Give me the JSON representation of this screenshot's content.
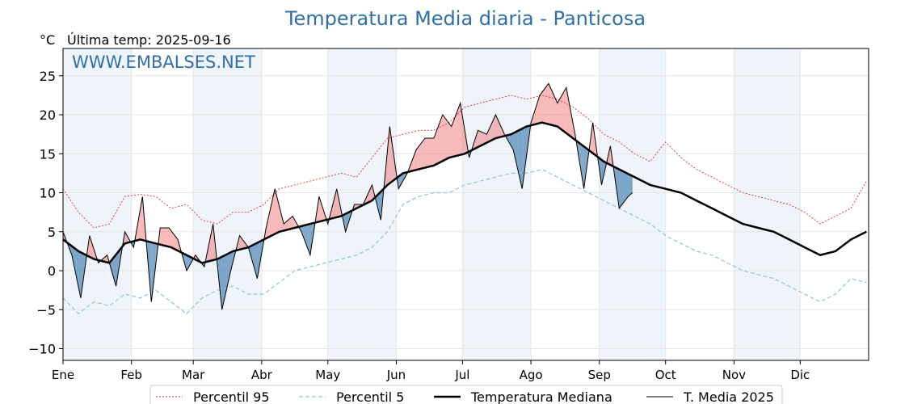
{
  "header": {
    "title": "Temperatura Media diaria - Panticosa",
    "unit": "°C",
    "last_temp": "Última temp: 2025-09-16",
    "watermark": "WWW.EMBALSES.NET"
  },
  "colors": {
    "title": "#2f6fa6",
    "p95": "#e03030",
    "p5": "#8fc4dc",
    "median": "#000000",
    "current": "#000000",
    "above_fill": "#f08080",
    "below_fill": "#2d6fa8",
    "month_band": "#eef4fa"
  },
  "chart_data": {
    "type": "line",
    "title": "Temperatura Media diaria - Panticosa",
    "ylabel": "°C",
    "ylim": [
      -11.5,
      28.5
    ],
    "xlim": [
      1,
      366
    ],
    "grid": true,
    "legend_position": "bottom",
    "yticks": [
      -10,
      -5,
      0,
      5,
      10,
      15,
      20,
      25
    ],
    "months": [
      {
        "label": "Ene",
        "day": 1
      },
      {
        "label": "Feb",
        "day": 32
      },
      {
        "label": "Mar",
        "day": 60
      },
      {
        "label": "Abr",
        "day": 91
      },
      {
        "label": "May",
        "day": 121
      },
      {
        "label": "Jun",
        "day": 152
      },
      {
        "label": "Jul",
        "day": 182
      },
      {
        "label": "Ago",
        "day": 213
      },
      {
        "label": "Sep",
        "day": 244
      },
      {
        "label": "Oct",
        "day": 274
      },
      {
        "label": "Nov",
        "day": 305
      },
      {
        "label": "Dic",
        "day": 335
      }
    ],
    "series": [
      {
        "name": "Percentil 95",
        "style": "dotted",
        "x": [
          1,
          8,
          15,
          22,
          29,
          36,
          43,
          50,
          57,
          64,
          71,
          78,
          85,
          92,
          99,
          106,
          113,
          120,
          127,
          134,
          141,
          148,
          155,
          162,
          169,
          176,
          183,
          190,
          197,
          204,
          211,
          218,
          225,
          232,
          239,
          246,
          253,
          260,
          267,
          274,
          281,
          288,
          295,
          302,
          309,
          316,
          323,
          330,
          337,
          344,
          351,
          358,
          365
        ],
        "values": [
          10.5,
          7.5,
          5.5,
          6,
          9.5,
          9.8,
          9.5,
          8,
          8.5,
          6.5,
          6,
          7.5,
          7.5,
          8.5,
          10.5,
          11,
          11.5,
          12,
          12.5,
          12,
          14.5,
          17,
          17.5,
          18,
          18,
          19,
          21,
          21.5,
          22,
          22.5,
          22,
          22.5,
          22,
          21,
          19.5,
          17.5,
          16.5,
          15,
          14,
          16.5,
          14.5,
          13,
          12,
          11,
          10,
          9.5,
          9,
          8.5,
          7.5,
          6,
          7,
          8,
          11.5
        ]
      },
      {
        "name": "Percentil 5",
        "style": "dashed",
        "x": [
          1,
          8,
          15,
          22,
          29,
          36,
          43,
          50,
          57,
          64,
          71,
          78,
          85,
          92,
          99,
          106,
          113,
          120,
          127,
          134,
          141,
          148,
          155,
          162,
          169,
          176,
          183,
          190,
          197,
          204,
          211,
          218,
          225,
          232,
          239,
          246,
          253,
          260,
          267,
          274,
          281,
          288,
          295,
          302,
          309,
          316,
          323,
          330,
          337,
          344,
          351,
          358,
          365
        ],
        "values": [
          -3.5,
          -5.5,
          -4,
          -4.5,
          -3,
          -3.5,
          -2.5,
          -4,
          -5.5,
          -3.5,
          -2.5,
          -2,
          -3,
          -3,
          -1.5,
          0,
          0.5,
          1,
          1.5,
          2,
          3,
          5,
          8.5,
          9.5,
          10,
          10,
          11,
          11.5,
          12,
          12.5,
          12.5,
          13,
          12,
          11,
          10,
          9,
          8,
          7,
          6,
          4.5,
          3.5,
          2.5,
          2,
          1,
          0,
          -0.5,
          -1,
          -2,
          -3,
          -4,
          -3,
          -1,
          -1.5
        ]
      },
      {
        "name": "Temperatura Mediana",
        "style": "solid-thick",
        "x": [
          1,
          8,
          15,
          22,
          29,
          36,
          43,
          50,
          57,
          64,
          71,
          78,
          85,
          92,
          99,
          106,
          113,
          120,
          127,
          134,
          141,
          148,
          155,
          162,
          169,
          176,
          183,
          190,
          197,
          204,
          211,
          218,
          225,
          232,
          239,
          246,
          253,
          260,
          267,
          274,
          281,
          288,
          295,
          302,
          309,
          316,
          323,
          330,
          337,
          344,
          351,
          358,
          365
        ],
        "values": [
          4,
          2.5,
          1.5,
          1,
          3.5,
          4,
          3.5,
          3,
          2,
          1,
          1.5,
          2.5,
          3,
          4,
          5,
          5.5,
          6,
          6.5,
          7,
          8,
          9,
          11,
          12.5,
          13,
          13.5,
          14.5,
          15,
          16,
          17,
          17.5,
          18.5,
          19,
          18.5,
          17,
          15.5,
          14,
          13,
          12,
          11,
          10.5,
          10,
          9,
          8,
          7,
          6,
          5.5,
          5,
          4,
          3,
          2,
          2.5,
          4,
          5
        ]
      },
      {
        "name": "T. Media 2025",
        "style": "solid-thin",
        "x": [
          1,
          5,
          9,
          13,
          17,
          21,
          25,
          29,
          33,
          37,
          41,
          45,
          49,
          53,
          57,
          61,
          65,
          69,
          73,
          77,
          81,
          85,
          89,
          93,
          97,
          101,
          105,
          109,
          113,
          117,
          121,
          125,
          129,
          133,
          137,
          141,
          145,
          149,
          153,
          157,
          161,
          165,
          169,
          173,
          177,
          181,
          185,
          189,
          193,
          197,
          201,
          205,
          209,
          213,
          217,
          221,
          225,
          229,
          233,
          237,
          241,
          245,
          249,
          253,
          257,
          259
        ],
        "values": [
          5,
          2,
          -3.5,
          4.5,
          1,
          2,
          -2,
          5,
          3,
          9.5,
          -4,
          5.5,
          5.5,
          4,
          0,
          2,
          0.5,
          6,
          -5,
          0,
          4.5,
          3,
          -1,
          5.5,
          10.5,
          6,
          7,
          5,
          2,
          9.5,
          6,
          10.5,
          5,
          8.5,
          8.5,
          11,
          6.5,
          18.5,
          10.5,
          12.5,
          15.5,
          17,
          17,
          20,
          18.5,
          21.5,
          14.5,
          18,
          17.5,
          20,
          17.5,
          15.5,
          10.5,
          19,
          22.5,
          24,
          21.5,
          23.5,
          17.5,
          10.5,
          19,
          11,
          16,
          8,
          9.5,
          10
        ]
      }
    ],
    "legend": [
      "Percentil 95",
      "Percentil 5",
      "Temperatura Mediana",
      "T. Media 2025"
    ]
  }
}
